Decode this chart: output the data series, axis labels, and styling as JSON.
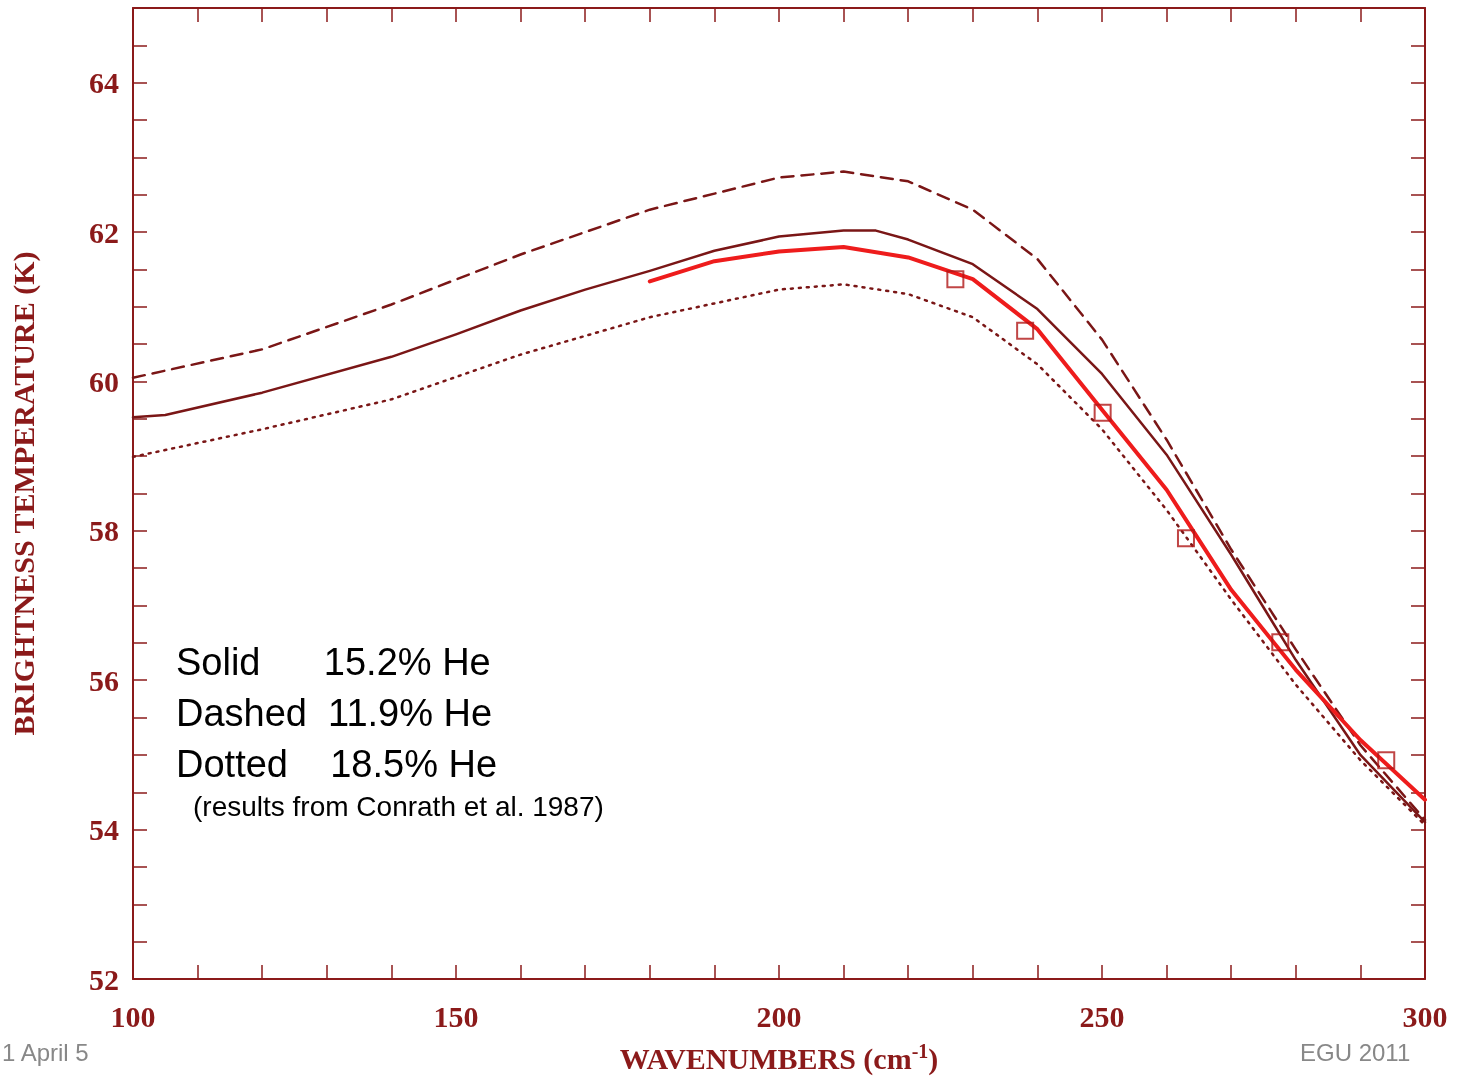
{
  "chart_data": {
    "type": "line",
    "xlabel": "WAVENUMBERS (cm$^{-1}$)",
    "ylabel": "BRIGHTNESS TEMPERATURE (K)",
    "xlim": [
      100,
      300
    ],
    "ylim": [
      52,
      65
    ],
    "xticks": [
      100,
      {
        "value": 110,
        "label": null
      },
      {
        "value": 120,
        "label": null
      },
      {
        "value": 130,
        "label": null
      },
      {
        "value": 140,
        "label": null
      },
      150,
      {
        "value": 160,
        "label": null
      },
      {
        "value": 170,
        "label": null
      },
      {
        "value": 180,
        "label": null
      },
      {
        "value": 190,
        "label": null
      },
      200,
      {
        "value": 210,
        "label": null
      },
      {
        "value": 220,
        "label": null
      },
      {
        "value": 230,
        "label": null
      },
      {
        "value": 240,
        "label": null
      },
      250,
      {
        "value": 260,
        "label": null
      },
      {
        "value": 270,
        "label": null
      },
      {
        "value": 280,
        "label": null
      },
      {
        "value": 290,
        "label": null
      },
      300
    ],
    "yticks": [
      52,
      {
        "value": 52.5,
        "label": null
      },
      {
        "value": 53,
        "label": null
      },
      {
        "value": 53.5,
        "label": null
      },
      54,
      {
        "value": 54.5,
        "label": null
      },
      {
        "value": 55,
        "label": null
      },
      {
        "value": 55.5,
        "label": null
      },
      56,
      {
        "value": 56.5,
        "label": null
      },
      {
        "value": 57,
        "label": null
      },
      {
        "value": 57.5,
        "label": null
      },
      58,
      {
        "value": 58.5,
        "label": null
      },
      {
        "value": 59,
        "label": null
      },
      {
        "value": 59.5,
        "label": null
      },
      60,
      {
        "value": 60.5,
        "label": null
      },
      {
        "value": 61,
        "label": null
      },
      {
        "value": 61.5,
        "label": null
      },
      62,
      {
        "value": 62.5,
        "label": null
      },
      {
        "value": 63,
        "label": null
      },
      {
        "value": 63.5,
        "label": null
      },
      64,
      {
        "value": 64.5,
        "label": null
      }
    ],
    "grid": false,
    "marker": "none",
    "series": [
      {
        "color": "#7a1616",
        "line_style": "solid",
        "x": [
          100,
          105,
          120,
          140,
          150,
          160,
          170,
          180,
          190,
          200,
          210,
          215,
          220,
          230,
          240,
          250,
          260,
          270,
          280,
          290,
          300
        ],
        "values": [
          59.52,
          59.55,
          59.85,
          60.33,
          60.63,
          60.95,
          61.23,
          61.48,
          61.75,
          61.94,
          62.02,
          62.02,
          61.9,
          61.57,
          60.97,
          60.1,
          59.02,
          57.68,
          56.27,
          55.0,
          54.1
        ]
      },
      {
        "color": "#7a1616",
        "line_style": "dashed",
        "x": [
          100,
          120,
          140,
          160,
          180,
          200,
          210,
          220,
          230,
          240,
          250,
          260,
          270,
          280,
          290,
          300
        ],
        "values": [
          60.05,
          60.43,
          61.03,
          61.7,
          62.3,
          62.73,
          62.81,
          62.68,
          62.3,
          61.64,
          60.56,
          59.22,
          57.75,
          56.41,
          55.13,
          54.13
        ]
      },
      {
        "color": "#7a1616",
        "line_style": "dotted",
        "x": [
          100,
          120,
          140,
          160,
          180,
          200,
          210,
          220,
          230,
          240,
          250,
          260,
          270,
          280,
          290,
          300
        ],
        "values": [
          58.99,
          59.36,
          59.76,
          60.36,
          60.86,
          61.23,
          61.3,
          61.17,
          60.86,
          60.23,
          59.36,
          58.28,
          57.08,
          55.94,
          54.93,
          54.06
        ]
      },
      {
        "color": "#ee1c1c",
        "line_style": "solid",
        "x": [
          180,
          190,
          200,
          210,
          220,
          230,
          240,
          250,
          260,
          270,
          280,
          290,
          300
        ],
        "values": [
          61.34,
          61.61,
          61.74,
          61.8,
          61.66,
          61.37,
          60.7,
          59.62,
          58.55,
          57.21,
          56.14,
          55.2,
          54.4
        ]
      },
      {
        "type": "scatter",
        "marker": "square",
        "color": "#b01818",
        "x": [
          227.3,
          238.1,
          250.1,
          263.0,
          277.6,
          294.0
        ],
        "values": [
          61.37,
          60.68,
          59.58,
          57.9,
          56.51,
          54.93
        ]
      }
    ],
    "annotations": [
      "Solid      15.2% He",
      "Dashed  11.9% He",
      "Dotted    18.5% He",
      "(results from Conrath et al. 1987)",
      "1 April 5",
      "EGU 2011"
    ]
  }
}
